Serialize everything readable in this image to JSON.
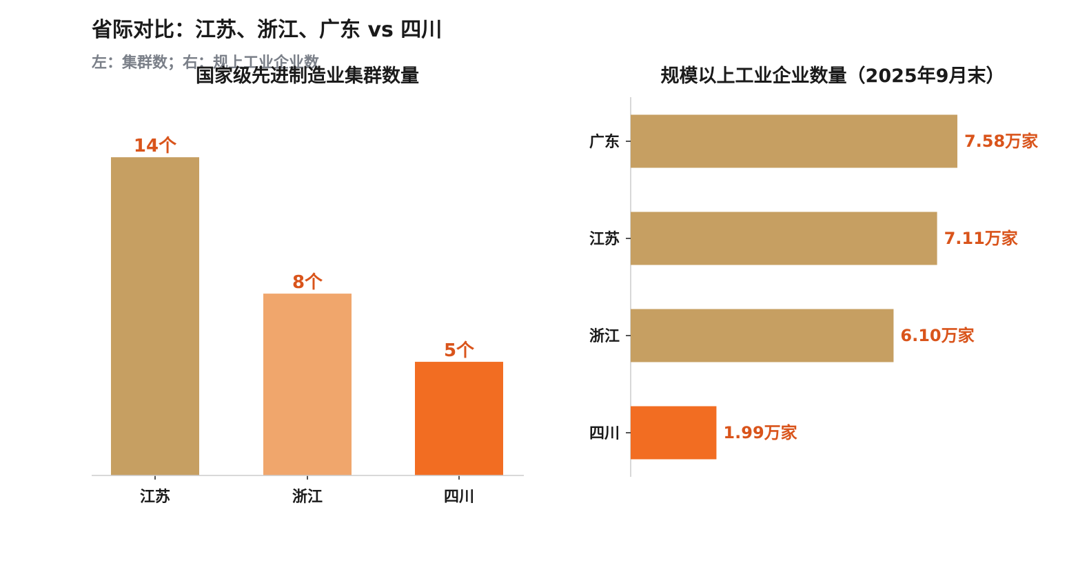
{
  "header": {
    "title": "省际对比：江苏、浙江、广东 vs 四川",
    "subtitle": "左：集群数；右：规上工业企业数"
  },
  "chart_data": [
    {
      "type": "bar",
      "title": "国家级先进制造业集群数量",
      "categories": [
        "江苏",
        "浙江",
        "四川"
      ],
      "values": [
        14,
        8,
        5
      ],
      "value_labels": [
        "14个",
        "8个",
        "5个"
      ],
      "colors": [
        "#c69f62",
        "#f0a66c",
        "#f26d22"
      ],
      "ylim": [
        0,
        15.4
      ],
      "grid": false
    },
    {
      "type": "bar",
      "orientation": "horizontal",
      "title": "规模以上工业企业数量（2025年9月末）",
      "categories": [
        "广东",
        "江苏",
        "浙江",
        "四川"
      ],
      "values": [
        7.58,
        7.11,
        6.1,
        1.99
      ],
      "value_labels": [
        "7.58万家",
        "7.11万家",
        "6.10万家",
        "1.99万家"
      ],
      "colors": [
        "#c69f62",
        "#c69f62",
        "#c69f62",
        "#f26d22"
      ],
      "xlim": [
        0,
        9.1
      ],
      "grid": false
    }
  ]
}
